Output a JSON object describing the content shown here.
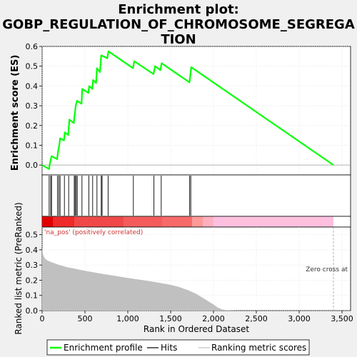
{
  "title_line1": "Enrichment plot:",
  "title_line2": "GOBP_REGULATION_OF_CHROMOSOME_SEGREGA",
  "title_line3": "TION",
  "colors": {
    "es_line": "#00ff00",
    "hits": "#000000",
    "metric_fill": "#c0c0c0",
    "zero_cross": "#a0a0a0",
    "pos_text": "#cc3333",
    "heat_pos": "#e00000",
    "heat_neg": "#ffc0e0"
  },
  "annotations": {
    "pos_label": "'na_pos' (positively correlated)",
    "zero_cross": "Zero cross at"
  },
  "legend": {
    "items": [
      {
        "label": "Enrichment profile",
        "color": "#00ff00"
      },
      {
        "label": "Hits",
        "color": "#000000"
      },
      {
        "label": "Ranking metric scores",
        "color": "#c0c0c0"
      }
    ]
  },
  "chart_data": [
    {
      "type": "line",
      "name": "enrichment-score",
      "ylabel": "Enrichment score (ES)",
      "xlim": [
        0,
        3600
      ],
      "ylim": [
        -0.05,
        0.6
      ],
      "yticks": [
        "0.0",
        "0.1",
        "0.2",
        "0.3",
        "0.4",
        "0.5",
        "0.6"
      ],
      "ytick_values": [
        0.0,
        0.1,
        0.2,
        0.3,
        0.4,
        0.5,
        0.6
      ],
      "grid": true,
      "x": [
        0,
        80,
        92,
        110,
        175,
        185,
        200,
        210,
        255,
        265,
        305,
        318,
        370,
        378,
        385,
        392,
        398,
        408,
        460,
        468,
        540,
        550,
        585,
        595,
        630,
        640,
        675,
        690,
        760,
        775,
        1060,
        1075,
        1300,
        1318,
        1380,
        1395,
        1720,
        1730,
        1740,
        3400
      ],
      "y": [
        0.0,
        -0.02,
        0.01,
        0.045,
        0.03,
        0.065,
        0.1,
        0.135,
        0.125,
        0.165,
        0.152,
        0.23,
        0.212,
        0.25,
        0.27,
        0.3,
        0.31,
        0.325,
        0.31,
        0.385,
        0.365,
        0.4,
        0.385,
        0.43,
        0.415,
        0.49,
        0.47,
        0.555,
        0.54,
        0.575,
        0.49,
        0.525,
        0.46,
        0.5,
        0.48,
        0.515,
        0.418,
        0.455,
        0.495,
        0.0
      ]
    },
    {
      "type": "scatter",
      "name": "hits",
      "x": [
        82,
        100,
        110,
        180,
        195,
        210,
        260,
        310,
        375,
        385,
        398,
        410,
        465,
        545,
        590,
        640,
        690,
        700,
        770,
        1065,
        1305,
        1390,
        1722,
        1735
      ]
    },
    {
      "type": "area",
      "name": "ranked-list-metric",
      "ylabel": "Ranked list metric (PreRanked)",
      "xlabel": "Rank in Ordered Dataset",
      "xlim": [
        0,
        3600
      ],
      "ylim": [
        0,
        0.55
      ],
      "xticks": [
        "0",
        "500",
        "1,000",
        "1,500",
        "2,000",
        "2,500",
        "3,000",
        "3,500"
      ],
      "xtick_values": [
        0,
        500,
        1000,
        1500,
        2000,
        2500,
        3000,
        3500
      ],
      "yticks": [
        "0.0",
        "0.1",
        "0.2",
        "0.3",
        "0.4",
        "0.5"
      ],
      "ytick_values": [
        0.0,
        0.1,
        0.2,
        0.3,
        0.4,
        0.5
      ],
      "grid": true,
      "x": [
        0,
        10,
        30,
        60,
        100,
        150,
        200,
        300,
        500,
        700,
        1000,
        1300,
        1500,
        1600,
        1700,
        1800,
        1900,
        2000,
        2050,
        2100,
        2150,
        2200,
        2300,
        2500,
        3000,
        3400
      ],
      "y": [
        0.41,
        0.37,
        0.345,
        0.33,
        0.32,
        0.31,
        0.3,
        0.285,
        0.262,
        0.242,
        0.215,
        0.19,
        0.17,
        0.155,
        0.135,
        0.11,
        0.075,
        0.04,
        0.02,
        0.008,
        0.003,
        0.001,
        0.0,
        0.0,
        0.0,
        0.0
      ],
      "zero_cross": 3400
    }
  ]
}
